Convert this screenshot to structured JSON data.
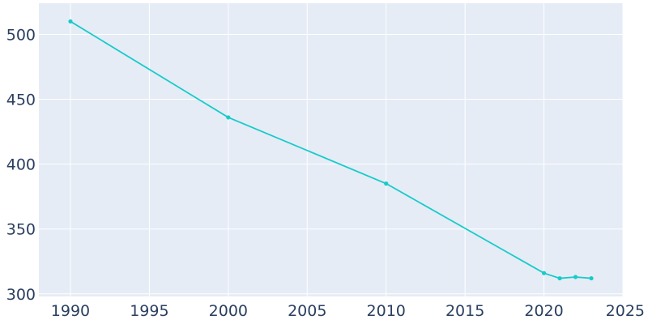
{
  "chart_data": {
    "type": "line",
    "title": "",
    "xlabel": "",
    "ylabel": "",
    "x": [
      1990,
      2000,
      2010,
      2020,
      2021,
      2022,
      2023
    ],
    "series": [
      {
        "values": [
          510,
          436,
          385,
          316,
          312,
          313,
          312
        ]
      }
    ],
    "xlim": [
      1988,
      2025
    ],
    "ylim": [
      298,
      524
    ],
    "x_ticks": [
      1990,
      1995,
      2000,
      2005,
      2010,
      2015,
      2020,
      2025
    ],
    "y_ticks": [
      300,
      350,
      400,
      450,
      500
    ],
    "x_tick_labels": [
      "1990",
      "1995",
      "2000",
      "2005",
      "2010",
      "2015",
      "2020",
      "2025"
    ],
    "y_tick_labels": [
      "300",
      "350",
      "400",
      "450",
      "500"
    ],
    "grid": true,
    "legend": "none",
    "colors": {
      "line": "#17cbc9",
      "plot_background": "#e5ecf6",
      "grid": "#ffffff",
      "tick_text": "#2a3f5f"
    }
  }
}
